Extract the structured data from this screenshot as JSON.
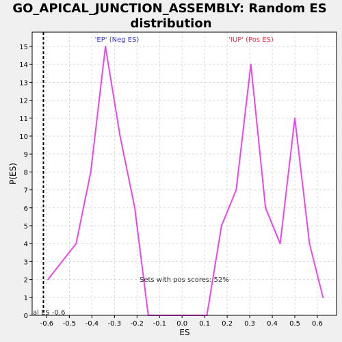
{
  "chart_data": {
    "type": "line",
    "title_lines": [
      "GO_APICAL_JUNCTION_ASSEMBLY: Random ES",
      "distribution"
    ],
    "xlabel": "ES",
    "ylabel": "P(ES)",
    "xlim": [
      -0.665,
      0.685
    ],
    "ylim": [
      0,
      15.8
    ],
    "x_ticks": [
      -0.6,
      -0.5,
      -0.4,
      -0.3,
      -0.2,
      -0.1,
      0.0,
      0.1,
      0.2,
      0.3,
      0.4,
      0.5,
      0.6
    ],
    "x_tick_labels": [
      "-0.6",
      "-0.5",
      "-0.4",
      "-0.3",
      "-0.2",
      "-0.1",
      "0.0",
      "0.1",
      "0.2",
      "0.3",
      "0.4",
      "0.5",
      "0.6"
    ],
    "y_ticks": [
      0,
      1,
      2,
      3,
      4,
      5,
      6,
      7,
      8,
      9,
      10,
      11,
      12,
      13,
      14,
      15
    ],
    "y_tick_labels": [
      "0",
      "1",
      "2",
      "3",
      "4",
      "5",
      "6",
      "7",
      "8",
      "9",
      "10",
      "11",
      "12",
      "13",
      "14",
      "15"
    ],
    "grid": true,
    "series": [
      {
        "name": "P(ES)",
        "color": "#ee44ee",
        "x": [
          -0.595,
          -0.47,
          -0.405,
          -0.34,
          -0.275,
          -0.21,
          -0.15,
          0.11,
          0.175,
          0.24,
          0.305,
          0.37,
          0.435,
          0.5,
          0.565,
          0.625
        ],
        "y": [
          2,
          4,
          8,
          15,
          10,
          6,
          0,
          0,
          5,
          7,
          14,
          6,
          4,
          11,
          4,
          1
        ]
      }
    ],
    "vline": {
      "x": -0.615,
      "color": "#000000",
      "style": "dashed"
    },
    "annotations": {
      "neg_label": {
        "text": "'EP' (Neg ES)",
        "color": "#3333cc"
      },
      "pos_label": {
        "text": "'IUP' (Pos ES)",
        "color": "#dd3344"
      },
      "pos_scores": {
        "text": "Sets with pos scores: 52%",
        "color": "#333333"
      },
      "actual_es": {
        "text": "al ES -0.6",
        "color": "#333333"
      }
    }
  }
}
